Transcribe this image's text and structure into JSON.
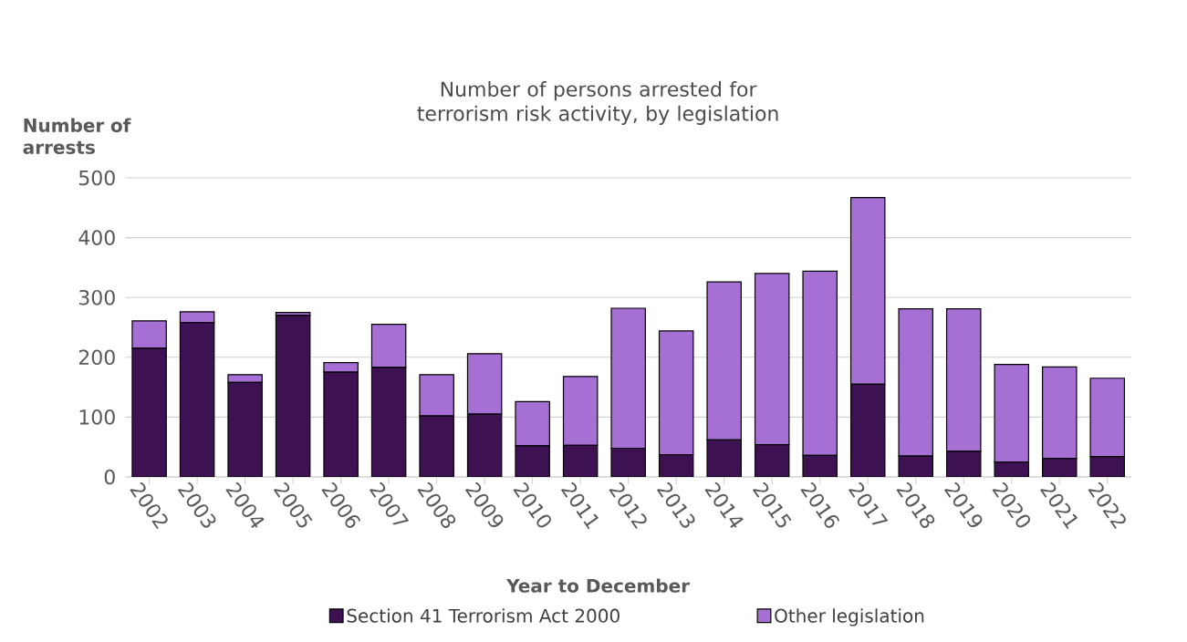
{
  "chart_data": {
    "type": "bar",
    "stacked": true,
    "title": "Number of persons arrested for terrorism risk activity, by legislation",
    "xlabel": "Year to December",
    "ylabel": "Number of arrests",
    "categories": [
      "2002",
      "2003",
      "2004",
      "2005",
      "2006",
      "2007",
      "2008",
      "2009",
      "2010",
      "2011",
      "2012",
      "2013",
      "2014",
      "2015",
      "2016",
      "2017",
      "2018",
      "2019",
      "2020",
      "2021",
      "2022"
    ],
    "series": [
      {
        "name": "Section 41 Terrorism Act 2000",
        "color": "#3d1152",
        "values": [
          215,
          258,
          158,
          270,
          175,
          183,
          102,
          105,
          52,
          53,
          48,
          37,
          62,
          54,
          36,
          155,
          35,
          43,
          25,
          31,
          34
        ]
      },
      {
        "name": "Other legislation",
        "color": "#a66fd4",
        "values": [
          46,
          18,
          13,
          5,
          16,
          72,
          69,
          101,
          74,
          115,
          234,
          207,
          264,
          286,
          308,
          312,
          246,
          238,
          163,
          153,
          131
        ]
      }
    ],
    "ylim": [
      0,
      500
    ],
    "yticks": [
      0,
      100,
      200,
      300,
      400,
      500
    ],
    "grid": "y",
    "legend": "bottom"
  }
}
